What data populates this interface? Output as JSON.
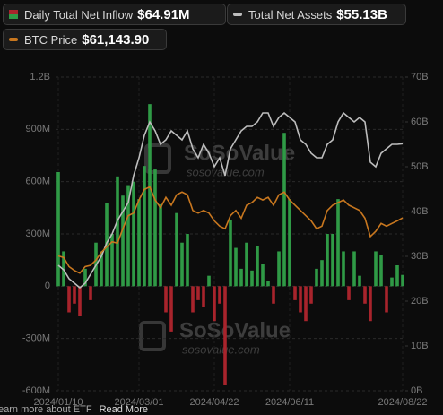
{
  "chart_data": {
    "type": "combo",
    "categories": [
      "2024/01/10",
      null,
      null,
      null,
      null,
      null,
      null,
      null,
      null,
      null,
      null,
      null,
      null,
      null,
      null,
      "2024/03/01",
      null,
      null,
      null,
      null,
      null,
      null,
      null,
      null,
      null,
      null,
      null,
      null,
      null,
      "2024/04/22",
      null,
      null,
      null,
      null,
      null,
      null,
      null,
      null,
      null,
      null,
      null,
      null,
      null,
      "2024/06/11",
      null,
      null,
      null,
      null,
      null,
      null,
      null,
      null,
      null,
      null,
      null,
      null,
      null,
      null,
      null,
      null,
      null,
      null,
      null,
      null,
      "2024/08/22"
    ],
    "series": [
      {
        "name": "Daily Total Net Inflow",
        "latest_label": "$64.91M",
        "kind": "bar",
        "axis": "y",
        "color": "#2f9a46",
        "negative_color": "#a8242c",
        "values": [
          655000000.0,
          200000000.0,
          -150000000.0,
          -100000000.0,
          -170000000.0,
          100000000.0,
          -80000000.0,
          250000000.0,
          200000000.0,
          480000000.0,
          300000000.0,
          630000000.0,
          520000000.0,
          580000000.0,
          600000000.0,
          500000000.0,
          690000000.0,
          1045000000.0,
          670000000.0,
          470000000.0,
          -150000000.0,
          -260000000.0,
          420000000.0,
          250000000.0,
          300000000.0,
          -150000000.0,
          -80000000.0,
          -120000000.0,
          60000000.0,
          -200000000.0,
          -100000000.0,
          -565000000.0,
          380000000.0,
          220000000.0,
          100000000.0,
          250000000.0,
          90000000.0,
          230000000.0,
          130000000.0,
          30000000.0,
          -100000000.0,
          200000000.0,
          880000000.0,
          500000000.0,
          -80000000.0,
          -150000000.0,
          -200000000.0,
          -100000000.0,
          100000000.0,
          150000000.0,
          300000000.0,
          300000000.0,
          500000000.0,
          200000000.0,
          -80000000.0,
          200000000.0,
          60000000.0,
          -100000000.0,
          -200000000.0,
          200000000.0,
          180000000.0,
          -150000000.0,
          50000000.0,
          120000000.0,
          64910000.0
        ]
      },
      {
        "name": "Total Net Assets",
        "latest_label": "$55.13B",
        "kind": "line",
        "axis": "y2",
        "color": "#bdbdbd",
        "values": [
          28000000000.0,
          27000000000.0,
          25000000000.0,
          24000000000.0,
          23000000000.0,
          24000000000.0,
          26000000000.0,
          28000000000.0,
          30000000000.0,
          33000000000.0,
          35000000000.0,
          38000000000.0,
          40000000000.0,
          42000000000.0,
          48000000000.0,
          52000000000.0,
          57000000000.0,
          60000000000.0,
          58000000000.0,
          55000000000.0,
          56000000000.0,
          58000000000.0,
          57000000000.0,
          56000000000.0,
          58000000000.0,
          54000000000.0,
          52000000000.0,
          55000000000.0,
          53000000000.0,
          50000000000.0,
          52000000000.0,
          48000000000.0,
          54000000000.0,
          56000000000.0,
          58000000000.0,
          59000000000.0,
          59000000000.0,
          60000000000.0,
          62000000000.0,
          62000000000.0,
          59000000000.0,
          61000000000.0,
          62000000000.0,
          61000000000.0,
          60000000000.0,
          56000000000.0,
          55000000000.0,
          53000000000.0,
          52000000000.0,
          52000000000.0,
          55000000000.0,
          56000000000.0,
          60000000000.0,
          62000000000.0,
          61000000000.0,
          60000000000.0,
          61000000000.0,
          60000000000.0,
          51000000000.0,
          50000000000.0,
          53000000000.0,
          54000000000.0,
          55000000000.0,
          55000000000.0,
          55130000000.0
        ]
      },
      {
        "name": "BTC Price",
        "latest_label": "$61,143.90",
        "kind": "line",
        "axis": "y3",
        "color": "#c8771f",
        "values": [
          46600,
          46000,
          42500,
          41000,
          40000,
          42500,
          43000,
          45000,
          48000,
          50000,
          52000,
          51500,
          57000,
          62000,
          63000,
          68000,
          72000,
          73000,
          68000,
          65000,
          69000,
          66000,
          70000,
          71000,
          70000,
          64000,
          63000,
          64000,
          63000,
          60000,
          58000,
          57000,
          62000,
          64000,
          61000,
          66000,
          67000,
          69000,
          68000,
          69000,
          66000,
          70000,
          71000,
          68000,
          66000,
          64000,
          62000,
          60000,
          57000,
          58000,
          64000,
          66000,
          67000,
          68000,
          66000,
          65000,
          64000,
          61000,
          54000,
          56000,
          59000,
          58000,
          59000,
          60000,
          61143.9
        ]
      }
    ],
    "ylim": [
      -600000000.0,
      1200000000.0
    ],
    "yticks": [
      {
        "value": -600000000.0,
        "label": "-600M"
      },
      {
        "value": -300000000.0,
        "label": "-300M"
      },
      0,
      {
        "value": 300000000.0,
        "label": "300M"
      },
      {
        "value": 600000000.0,
        "label": "600M"
      },
      {
        "value": 900000000.0,
        "label": "900M"
      },
      {
        "value": 1200000000.0,
        "label": "1.2B"
      }
    ],
    "y2lim": [
      0,
      70000000000.0
    ],
    "y2ticks": [
      {
        "value": 0,
        "label": "0B"
      },
      {
        "value": 10000000000.0,
        "label": "10B"
      },
      {
        "value": 20000000000.0,
        "label": "20B"
      },
      {
        "value": 30000000000.0,
        "label": "30B"
      },
      {
        "value": 40000000000.0,
        "label": "40B"
      },
      {
        "value": 50000000000.0,
        "label": "50B"
      },
      {
        "value": 60000000000.0,
        "label": "60B"
      },
      {
        "value": 70000000000.0,
        "label": "70B"
      }
    ],
    "y3lim": [
      -5000,
      115000
    ],
    "grid": true,
    "watermark": {
      "brand": "SoSoValue",
      "site": "sosovalue.com"
    }
  },
  "footer": {
    "text": "earn more about ETF",
    "link": "Read More"
  }
}
